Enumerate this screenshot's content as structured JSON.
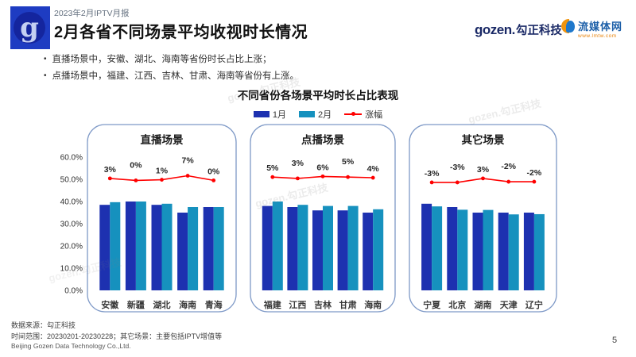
{
  "header": {
    "report_label": "2023年2月IPTV月报",
    "title": "2月各省不同场景平均收视时长情况",
    "logo_letter": "g",
    "gozen_logo_en": "gozen.",
    "gozen_logo_cn": "勾正科技",
    "lmtw_logo_cn": "流媒体网",
    "lmtw_logo_url": "www.lmtw.com"
  },
  "bullets": [
    "直播场景中，安徽、湖北、海南等省份时长占比上涨；",
    "点播场景中，福建、江西、吉林、甘肃、海南等省份有上涨。"
  ],
  "chart_data": {
    "type": "bar",
    "title": "不同省份各场景平均时长占比表现",
    "legend": [
      "1月",
      "2月",
      "涨幅"
    ],
    "ylim": [
      0,
      60
    ],
    "yticks": [
      "60.0%",
      "50.0%",
      "40.0%",
      "30.0%",
      "20.0%",
      "10.0%",
      "0.0%"
    ],
    "grid": false,
    "legend_position": "top-center",
    "colors": {
      "jan": "#1d31b0",
      "feb": "#1691be",
      "growth": "#ff0000",
      "panel_border": "#7e99c7"
    },
    "panels": [
      {
        "name": "直播场景",
        "categories": [
          "安徽",
          "新疆",
          "湖北",
          "海南",
          "青海"
        ],
        "series": [
          {
            "name": "1月",
            "values": [
              38.5,
              40.0,
              38.5,
              35.0,
              37.5
            ]
          },
          {
            "name": "2月",
            "values": [
              39.7,
              40.0,
              39.0,
              37.5,
              37.5
            ]
          }
        ],
        "growth_pct": [
          3,
          0,
          1,
          7,
          0
        ],
        "growth_labels": [
          "3%",
          "0%",
          "1%",
          "7%",
          "0%"
        ]
      },
      {
        "name": "点播场景",
        "categories": [
          "福建",
          "江西",
          "吉林",
          "甘肃",
          "海南"
        ],
        "series": [
          {
            "name": "1月",
            "values": [
              38.0,
              37.5,
              36.0,
              36.0,
              35.0
            ]
          },
          {
            "name": "2月",
            "values": [
              40.0,
              38.5,
              38.0,
              38.0,
              36.5
            ]
          }
        ],
        "growth_pct": [
          5,
          3,
          6,
          5,
          4
        ],
        "growth_labels": [
          "5%",
          "3%",
          "6%",
          "5%",
          "4%"
        ]
      },
      {
        "name": "其它场景",
        "categories": [
          "宁夏",
          "北京",
          "湖南",
          "天津",
          "辽宁"
        ],
        "series": [
          {
            "name": "1月",
            "values": [
              39.0,
              37.5,
              35.0,
              35.0,
              35.0
            ]
          },
          {
            "name": "2月",
            "values": [
              37.8,
              36.3,
              36.2,
              34.2,
              34.3
            ]
          }
        ],
        "growth_pct": [
          -3,
          -3,
          3,
          -2,
          -2
        ],
        "growth_labels": [
          "-3%",
          "-3%",
          "3%",
          "-2%",
          "-2%"
        ]
      }
    ]
  },
  "footer": {
    "source": "数据来源：勾正科技",
    "range_note": "时间范围：20230201-20230228；其它场景：主要包括IPTV增值等",
    "company": "Beijing Gozen Data Technology Co.,Ltd.",
    "page_number": "5"
  },
  "watermark": "gozen.勾正科技"
}
